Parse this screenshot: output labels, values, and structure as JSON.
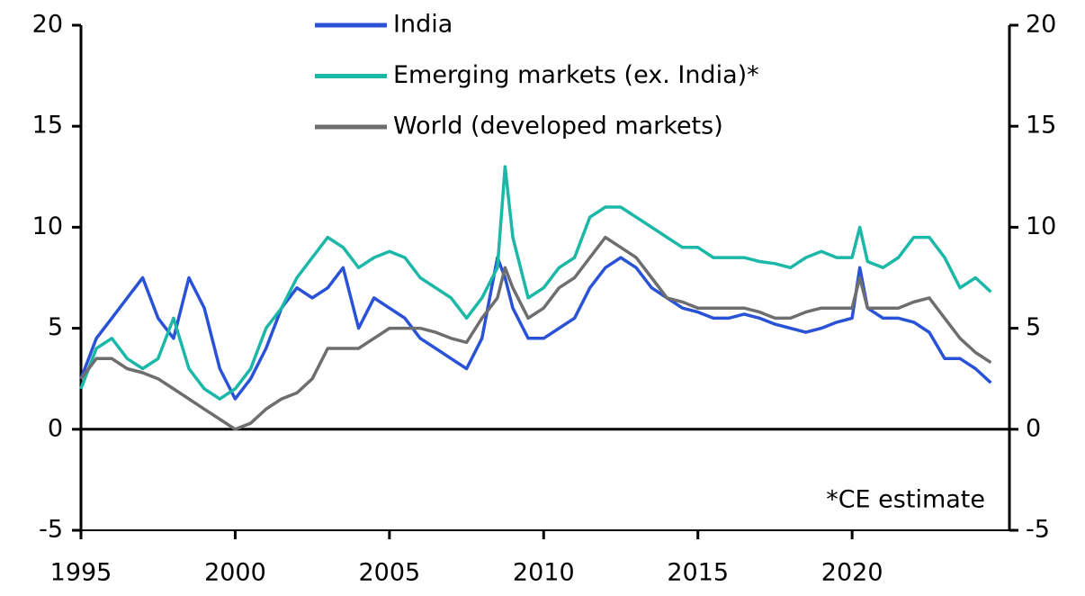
{
  "chart_data": {
    "type": "line",
    "x": [
      1995,
      1995.5,
      1996,
      1996.5,
      1997,
      1997.5,
      1998,
      1998.5,
      1999,
      1999.5,
      2000,
      2000.5,
      2001,
      2001.5,
      2002,
      2002.5,
      2003,
      2003.5,
      2004,
      2004.5,
      2005,
      2005.5,
      2006,
      2006.5,
      2007,
      2007.5,
      2008,
      2008.5,
      2008.75,
      2009,
      2009.5,
      2010,
      2010.5,
      2011,
      2011.5,
      2012,
      2012.5,
      2013,
      2013.5,
      2014,
      2014.5,
      2015,
      2015.5,
      2016,
      2016.5,
      2017,
      2017.5,
      2018,
      2018.5,
      2019,
      2019.5,
      2020,
      2020.25,
      2020.5,
      2021,
      2021.5,
      2022,
      2022.5,
      2023,
      2023.5,
      2024,
      2024.5
    ],
    "series": [
      {
        "name": "India",
        "color": "#2a52d6",
        "values": [
          2.5,
          4.5,
          5.5,
          6.5,
          7.5,
          5.5,
          4.5,
          7.5,
          6.0,
          3.0,
          1.5,
          2.5,
          4.0,
          6.0,
          7.0,
          6.5,
          7.0,
          8.0,
          5.0,
          6.5,
          6.0,
          5.5,
          4.5,
          4.0,
          3.5,
          3.0,
          4.5,
          8.5,
          7.5,
          6.0,
          4.5,
          4.5,
          5.0,
          5.5,
          7.0,
          8.0,
          8.5,
          8.0,
          7.0,
          6.5,
          6.0,
          5.8,
          5.5,
          5.5,
          5.7,
          5.5,
          5.2,
          5.0,
          4.8,
          5.0,
          5.3,
          5.5,
          8.0,
          6.0,
          5.5,
          5.5,
          5.3,
          4.8,
          3.5,
          3.5,
          3.0,
          2.3
        ]
      },
      {
        "name": "Emerging markets (ex. India)*",
        "color": "#1bb8a8",
        "values": [
          2.0,
          4.0,
          4.5,
          3.5,
          3.0,
          3.5,
          5.5,
          3.0,
          2.0,
          1.5,
          2.0,
          3.0,
          5.0,
          6.0,
          7.5,
          8.5,
          9.5,
          9.0,
          8.0,
          8.5,
          8.8,
          8.5,
          7.5,
          7.0,
          6.5,
          5.5,
          6.5,
          8.0,
          13.0,
          9.5,
          6.5,
          7.0,
          8.0,
          8.5,
          10.5,
          11.0,
          11.0,
          10.5,
          10.0,
          9.5,
          9.0,
          9.0,
          8.5,
          8.5,
          8.5,
          8.3,
          8.2,
          8.0,
          8.5,
          8.8,
          8.5,
          8.5,
          10.0,
          8.3,
          8.0,
          8.5,
          9.5,
          9.5,
          8.5,
          7.0,
          7.5,
          6.8
        ]
      },
      {
        "name": "World (developed markets)",
        "color": "#6e6e6e",
        "values": [
          2.5,
          3.5,
          3.5,
          3.0,
          2.8,
          2.5,
          2.0,
          1.5,
          1.0,
          0.5,
          0.0,
          0.3,
          1.0,
          1.5,
          1.8,
          2.5,
          4.0,
          4.0,
          4.0,
          4.5,
          5.0,
          5.0,
          5.0,
          4.8,
          4.5,
          4.3,
          5.5,
          6.5,
          8.0,
          7.0,
          5.5,
          6.0,
          7.0,
          7.5,
          8.5,
          9.5,
          9.0,
          8.5,
          7.5,
          6.5,
          6.3,
          6.0,
          6.0,
          6.0,
          6.0,
          5.8,
          5.5,
          5.5,
          5.8,
          6.0,
          6.0,
          6.0,
          7.5,
          6.0,
          6.0,
          6.0,
          6.3,
          6.5,
          5.5,
          4.5,
          3.8,
          3.3
        ]
      }
    ],
    "xlim": [
      1995,
      2025.1
    ],
    "xticks": [
      1995,
      2000,
      2005,
      2010,
      2015,
      2020
    ],
    "ylim": [
      -5,
      20
    ],
    "yticks": [
      -5,
      0,
      5,
      10,
      15,
      20
    ],
    "y2lim": [
      -5,
      20
    ],
    "y2ticks": [
      -5,
      0,
      5,
      10,
      15,
      20
    ],
    "annotation": "*CE estimate"
  }
}
